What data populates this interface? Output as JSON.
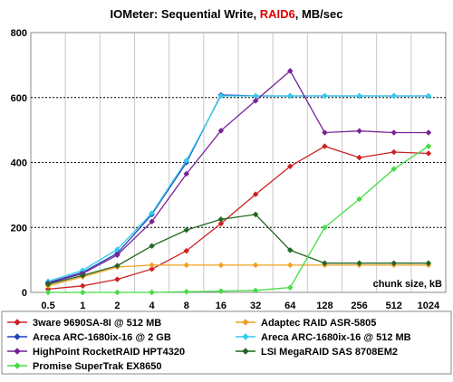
{
  "chart_data": {
    "type": "line",
    "title_parts": [
      {
        "text": "IOMeter: Sequential  Write, ",
        "color": "#000000"
      },
      {
        "text": "RAID6",
        "color": "#e00000"
      },
      {
        "text": ", MB/sec",
        "color": "#000000"
      }
    ],
    "xlabel": "chunk size, kB",
    "ylabel": "",
    "categories": [
      "0.5",
      "1",
      "2",
      "4",
      "8",
      "16",
      "32",
      "64",
      "128",
      "256",
      "512",
      "1024"
    ],
    "ylim": [
      0,
      800
    ],
    "yticks": [
      0,
      200,
      400,
      600,
      800
    ],
    "grid": {
      "vertical": true,
      "horizontal": true
    },
    "legend_position": "bottom",
    "series": [
      {
        "name": "3ware 9690SA-8I @ 512 MB",
        "color": "#cc2222",
        "values": [
          10,
          20,
          40,
          72,
          128,
          212,
          302,
          388,
          450,
          415,
          432,
          428
        ]
      },
      {
        "name": "Adaptec RAID ASR-5805",
        "color": "#f0a020",
        "values": [
          20,
          48,
          78,
          84,
          84,
          84,
          84,
          84,
          84,
          84,
          84,
          84
        ]
      },
      {
        "name": "Areca ARC-1680ix-16 @ 2 GB",
        "color": "#2244bb",
        "values": [
          30,
          62,
          120,
          240,
          400,
          608,
          605,
          605,
          605,
          605,
          605,
          605
        ]
      },
      {
        "name": "Areca ARC-1680ix-16 @ 512 MB",
        "color": "#33ccee",
        "values": [
          34,
          68,
          132,
          244,
          406,
          605,
          605,
          605,
          605,
          605,
          605,
          605
        ]
      },
      {
        "name": "HighPoint RocketRAID HPT4320",
        "color": "#772299",
        "values": [
          28,
          58,
          115,
          218,
          365,
          498,
          590,
          682,
          492,
          497,
          492,
          492
        ]
      },
      {
        "name": "LSI MegaRAID SAS 8708EM2",
        "color": "#226622",
        "values": [
          25,
          52,
          82,
          143,
          192,
          225,
          240,
          130,
          90,
          90,
          90,
          90
        ]
      },
      {
        "name": "Promise SuperTrak EX8650",
        "color": "#44dd44",
        "values": [
          0,
          0,
          0,
          0,
          2,
          4,
          6,
          15,
          200,
          287,
          380,
          450
        ]
      }
    ]
  }
}
